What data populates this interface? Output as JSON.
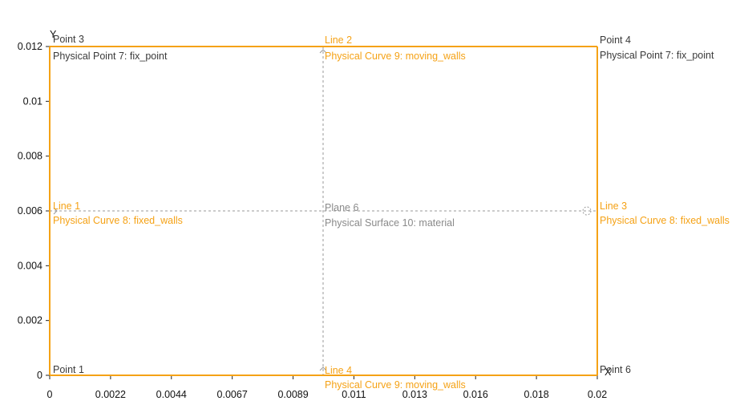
{
  "axes": {
    "x_label": "X",
    "y_label": "Y",
    "x_ticks": [
      "0",
      "0.0022",
      "0.0044",
      "0.0067",
      "0.0089",
      "0.011",
      "0.013",
      "0.016",
      "0.018",
      "0.02"
    ],
    "y_ticks": [
      "0",
      "0.002",
      "0.004",
      "0.006",
      "0.008",
      "0.01",
      "0.012"
    ]
  },
  "points": {
    "p3": {
      "name": "Point 3",
      "group": "Physical Point 7: fix_point"
    },
    "p4": {
      "name": "Point 4",
      "group": "Physical Point 7: fix_point"
    },
    "p1": {
      "name": "Point 1"
    },
    "p6": {
      "name": "Point 6"
    }
  },
  "lines": {
    "l1": {
      "name": "Line 1",
      "group": "Physical Curve 8: fixed_walls"
    },
    "l2": {
      "name": "Line 2",
      "group": "Physical Curve 9: moving_walls"
    },
    "l3": {
      "name": "Line 3",
      "group": "Physical Curve 8: fixed_walls"
    },
    "l4": {
      "name": "Line 4",
      "group": "Physical Curve 9: moving_walls"
    }
  },
  "surface": {
    "name": "Plane 6",
    "group": "Physical Surface 10: material"
  },
  "colors": {
    "boundary": "#f5a216",
    "axis": "#222222",
    "guide": "#9a9a9a",
    "point_label": "#3a3a3a",
    "surface_label": "#8a8a8a"
  }
}
